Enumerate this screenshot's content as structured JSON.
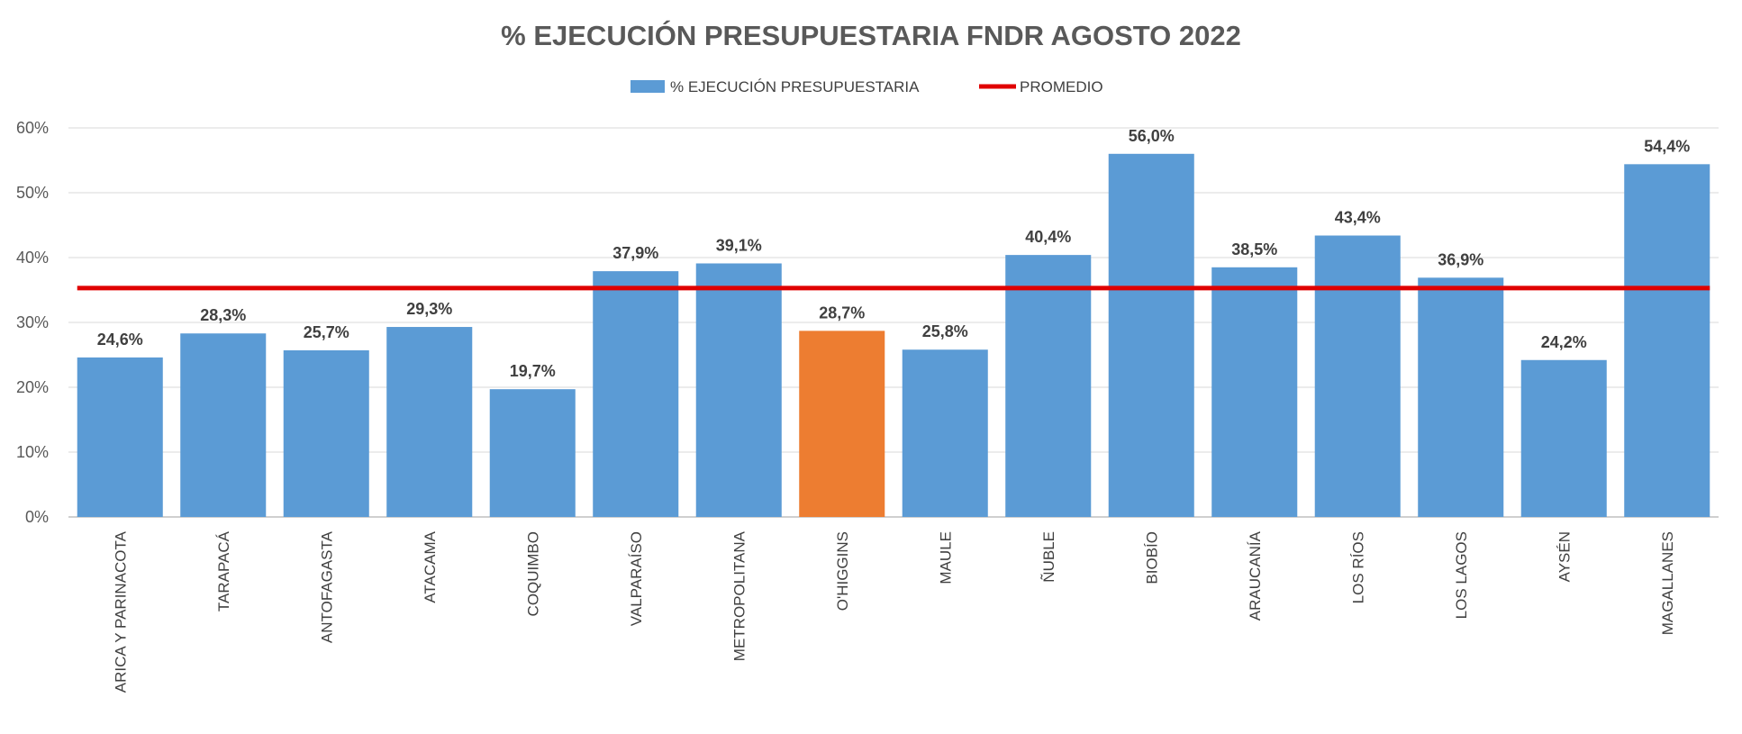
{
  "chart_data": {
    "type": "bar",
    "title": "% EJECUCIÓN PRESUPUESTARIA FNDR AGOSTO 2022",
    "xlabel": "",
    "ylabel": "",
    "ylim": [
      0,
      60
    ],
    "yticks": [
      0,
      10,
      20,
      30,
      40,
      50,
      60
    ],
    "ytick_labels": [
      "0%",
      "10%",
      "20%",
      "30%",
      "40%",
      "50%",
      "60%"
    ],
    "grid": true,
    "legend_position": "top-center",
    "categories": [
      "ARICA Y PARINACOTA",
      "TARAPACÁ",
      "ANTOFAGASTA",
      "ATACAMA",
      "COQUIMBO",
      "VALPARAÍSO",
      "METROPOLITANA",
      "O'HIGGINS",
      "MAULE",
      "ÑUBLE",
      "BIOBÍO",
      "ARAUCANÍA",
      "LOS RÍOS",
      "LOS LAGOS",
      "AYSÉN",
      "MAGALLANES"
    ],
    "series": [
      {
        "name": "% EJECUCIÓN PRESUPUESTARIA",
        "type": "bar",
        "color": "#5B9BD5",
        "highlight_color": "#ED7D31",
        "highlight_index": 7,
        "values": [
          24.6,
          28.3,
          25.7,
          29.3,
          19.7,
          37.9,
          39.1,
          28.7,
          25.8,
          40.4,
          56.0,
          38.5,
          43.4,
          36.9,
          24.2,
          54.4
        ],
        "labels": [
          "24,6%",
          "28,3%",
          "25,7%",
          "29,3%",
          "19,7%",
          "37,9%",
          "39,1%",
          "28,7%",
          "25,8%",
          "40,4%",
          "56,0%",
          "38,5%",
          "43,4%",
          "36,9%",
          "24,2%",
          "54,4%"
        ]
      },
      {
        "name": "PROMEDIO",
        "type": "line",
        "color": "#E00000",
        "value": 35.3
      }
    ]
  }
}
